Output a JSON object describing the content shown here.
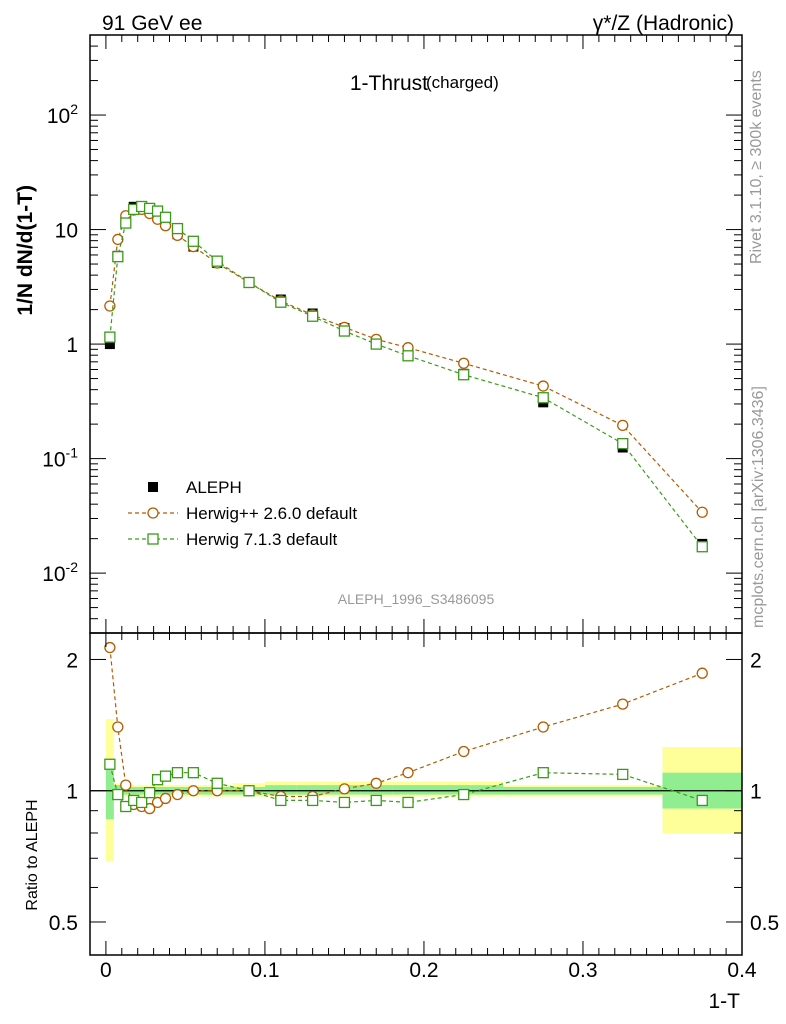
{
  "header": {
    "left": "91 GeV ee",
    "right": "γ*/Z (Hadronic)"
  },
  "side_labels": {
    "rivet": "Rivet 3.1.10, ≥ 300k events",
    "mcplots": "mcplots.cern.ch [arXiv:1306.3436]"
  },
  "colors": {
    "herwig_pp": "#b35c00",
    "herwig7": "#3a9a1a",
    "band_inner": "#90ee90",
    "band_outer": "#ffff99",
    "watermark": "#999999"
  },
  "chart_data": [
    {
      "type": "line",
      "title": "1-Thrust",
      "title_suffix": "(charged)",
      "ylabel": "1/N dN/d(1-T)",
      "yscale": "log",
      "ylim": [
        0.003,
        500
      ],
      "xlim": [
        -0.01,
        0.4
      ],
      "ytick_labels": [
        "10^-2",
        "10^-1",
        "1",
        "10",
        "10^2"
      ],
      "watermark": "ALEPH_1996_S3486095",
      "legend_position": "lower-left",
      "x": [
        0.0025,
        0.0075,
        0.0125,
        0.0175,
        0.0225,
        0.0275,
        0.0325,
        0.0375,
        0.045,
        0.055,
        0.07,
        0.09,
        0.11,
        0.13,
        0.15,
        0.17,
        0.19,
        0.225,
        0.275,
        0.325,
        0.375
      ],
      "series": [
        {
          "name": "ALEPH",
          "marker": "filled-square",
          "values": [
            1.0,
            5.9,
            12.5,
            15.8,
            16.0,
            15.0,
            13.5,
            11.5,
            9.1,
            7.1,
            5.1,
            3.45,
            2.45,
            1.85,
            1.38,
            1.05,
            0.84,
            0.55,
            0.31,
            0.125,
            0.018
          ]
        },
        {
          "name": "Herwig++ 2.6.0 default",
          "marker": "open-circle",
          "values": [
            2.15,
            8.2,
            13.2,
            14.8,
            15.0,
            13.8,
            12.3,
            10.8,
            8.9,
            7.1,
            5.1,
            3.45,
            2.38,
            1.8,
            1.4,
            1.1,
            0.93,
            0.68,
            0.43,
            0.195,
            0.034
          ]
        },
        {
          "name": "Herwig 7.1.3 default",
          "marker": "open-square",
          "values": [
            1.15,
            5.8,
            11.4,
            15.0,
            15.9,
            15.3,
            14.5,
            12.8,
            10.2,
            7.9,
            5.3,
            3.45,
            2.32,
            1.75,
            1.3,
            1.0,
            0.79,
            0.54,
            0.34,
            0.135,
            0.017
          ]
        }
      ]
    },
    {
      "type": "line",
      "ylabel": "Ratio to ALEPH",
      "xlabel": "1-T",
      "yscale": "log",
      "ylim": [
        0.42,
        2.3
      ],
      "xlim": [
        -0.01,
        0.4
      ],
      "ytick_labels": [
        "0.5",
        "1",
        "2"
      ],
      "xtick_labels": [
        "0",
        "0.1",
        "0.2",
        "0.3",
        "0.4"
      ],
      "x": [
        0.0025,
        0.0075,
        0.0125,
        0.0175,
        0.0225,
        0.0275,
        0.0325,
        0.0375,
        0.045,
        0.055,
        0.07,
        0.09,
        0.11,
        0.13,
        0.15,
        0.17,
        0.19,
        0.225,
        0.275,
        0.325,
        0.375
      ],
      "x_edges": [
        0,
        0.005,
        0.01,
        0.015,
        0.02,
        0.025,
        0.03,
        0.035,
        0.04,
        0.05,
        0.06,
        0.08,
        0.1,
        0.12,
        0.14,
        0.16,
        0.18,
        0.2,
        0.25,
        0.3,
        0.35,
        0.4
      ],
      "band_inner": [
        [
          0.86,
          1.16
        ],
        [
          0.97,
          1.03
        ],
        [
          0.98,
          1.02
        ],
        [
          0.98,
          1.02
        ],
        [
          0.98,
          1.02
        ],
        [
          0.98,
          1.02
        ],
        [
          0.98,
          1.02
        ],
        [
          0.98,
          1.02
        ],
        [
          0.98,
          1.02
        ],
        [
          0.98,
          1.02
        ],
        [
          0.98,
          1.02
        ],
        [
          0.98,
          1.02
        ],
        [
          0.98,
          1.03
        ],
        [
          0.98,
          1.03
        ],
        [
          0.98,
          1.03
        ],
        [
          0.98,
          1.03
        ],
        [
          0.98,
          1.03
        ],
        [
          0.98,
          1.03
        ],
        [
          0.98,
          1.02
        ],
        [
          0.98,
          1.02
        ],
        [
          0.91,
          1.1
        ]
      ],
      "band_outer": [
        [
          0.69,
          1.46
        ],
        [
          0.96,
          1.04
        ],
        [
          0.97,
          1.03
        ],
        [
          0.97,
          1.03
        ],
        [
          0.97,
          1.03
        ],
        [
          0.97,
          1.03
        ],
        [
          0.97,
          1.03
        ],
        [
          0.97,
          1.03
        ],
        [
          0.97,
          1.03
        ],
        [
          0.97,
          1.03
        ],
        [
          0.97,
          1.03
        ],
        [
          0.97,
          1.04
        ],
        [
          0.97,
          1.05
        ],
        [
          0.97,
          1.05
        ],
        [
          0.97,
          1.05
        ],
        [
          0.97,
          1.05
        ],
        [
          0.97,
          1.05
        ],
        [
          0.97,
          1.05
        ],
        [
          0.97,
          1.03
        ],
        [
          0.97,
          1.03
        ],
        [
          0.8,
          1.26
        ]
      ],
      "series": [
        {
          "name": "Herwig++ 2.6.0 default",
          "marker": "open-circle",
          "values": [
            2.13,
            1.4,
            1.03,
            0.93,
            0.92,
            0.91,
            0.94,
            0.96,
            0.98,
            1.0,
            1.0,
            1.0,
            0.97,
            0.97,
            1.01,
            1.04,
            1.1,
            1.23,
            1.4,
            1.58,
            1.86
          ]
        },
        {
          "name": "Herwig 7.1.3 default",
          "marker": "open-square",
          "values": [
            1.15,
            0.98,
            0.92,
            0.95,
            0.94,
            0.99,
            1.06,
            1.08,
            1.1,
            1.1,
            1.04,
            1.0,
            0.95,
            0.95,
            0.94,
            0.95,
            0.94,
            0.98,
            1.1,
            1.09,
            0.95
          ]
        }
      ]
    }
  ]
}
